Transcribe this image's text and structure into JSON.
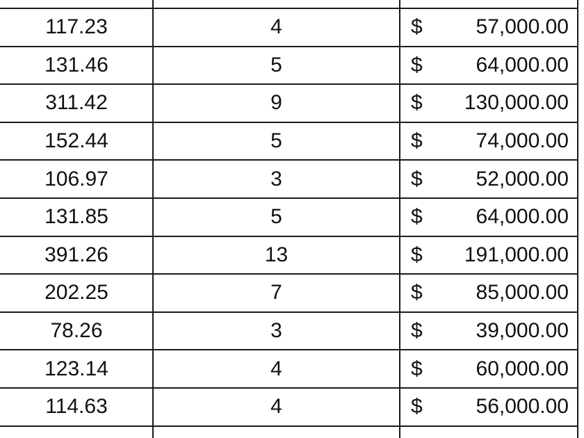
{
  "table": {
    "rows": [
      {
        "value": "117.23",
        "count": "4",
        "currency": "$",
        "amount": "57,000.00"
      },
      {
        "value": "131.46",
        "count": "5",
        "currency": "$",
        "amount": "64,000.00"
      },
      {
        "value": "311.42",
        "count": "9",
        "currency": "$",
        "amount": "130,000.00"
      },
      {
        "value": "152.44",
        "count": "5",
        "currency": "$",
        "amount": "74,000.00"
      },
      {
        "value": "106.97",
        "count": "3",
        "currency": "$",
        "amount": "52,000.00"
      },
      {
        "value": "131.85",
        "count": "5",
        "currency": "$",
        "amount": "64,000.00"
      },
      {
        "value": "391.26",
        "count": "13",
        "currency": "$",
        "amount": "191,000.00"
      },
      {
        "value": "202.25",
        "count": "7",
        "currency": "$",
        "amount": "85,000.00"
      },
      {
        "value": "78.26",
        "count": "3",
        "currency": "$",
        "amount": "39,000.00"
      },
      {
        "value": "123.14",
        "count": "4",
        "currency": "$",
        "amount": "60,000.00"
      },
      {
        "value": "114.63",
        "count": "4",
        "currency": "$",
        "amount": "56,000.00"
      }
    ]
  }
}
